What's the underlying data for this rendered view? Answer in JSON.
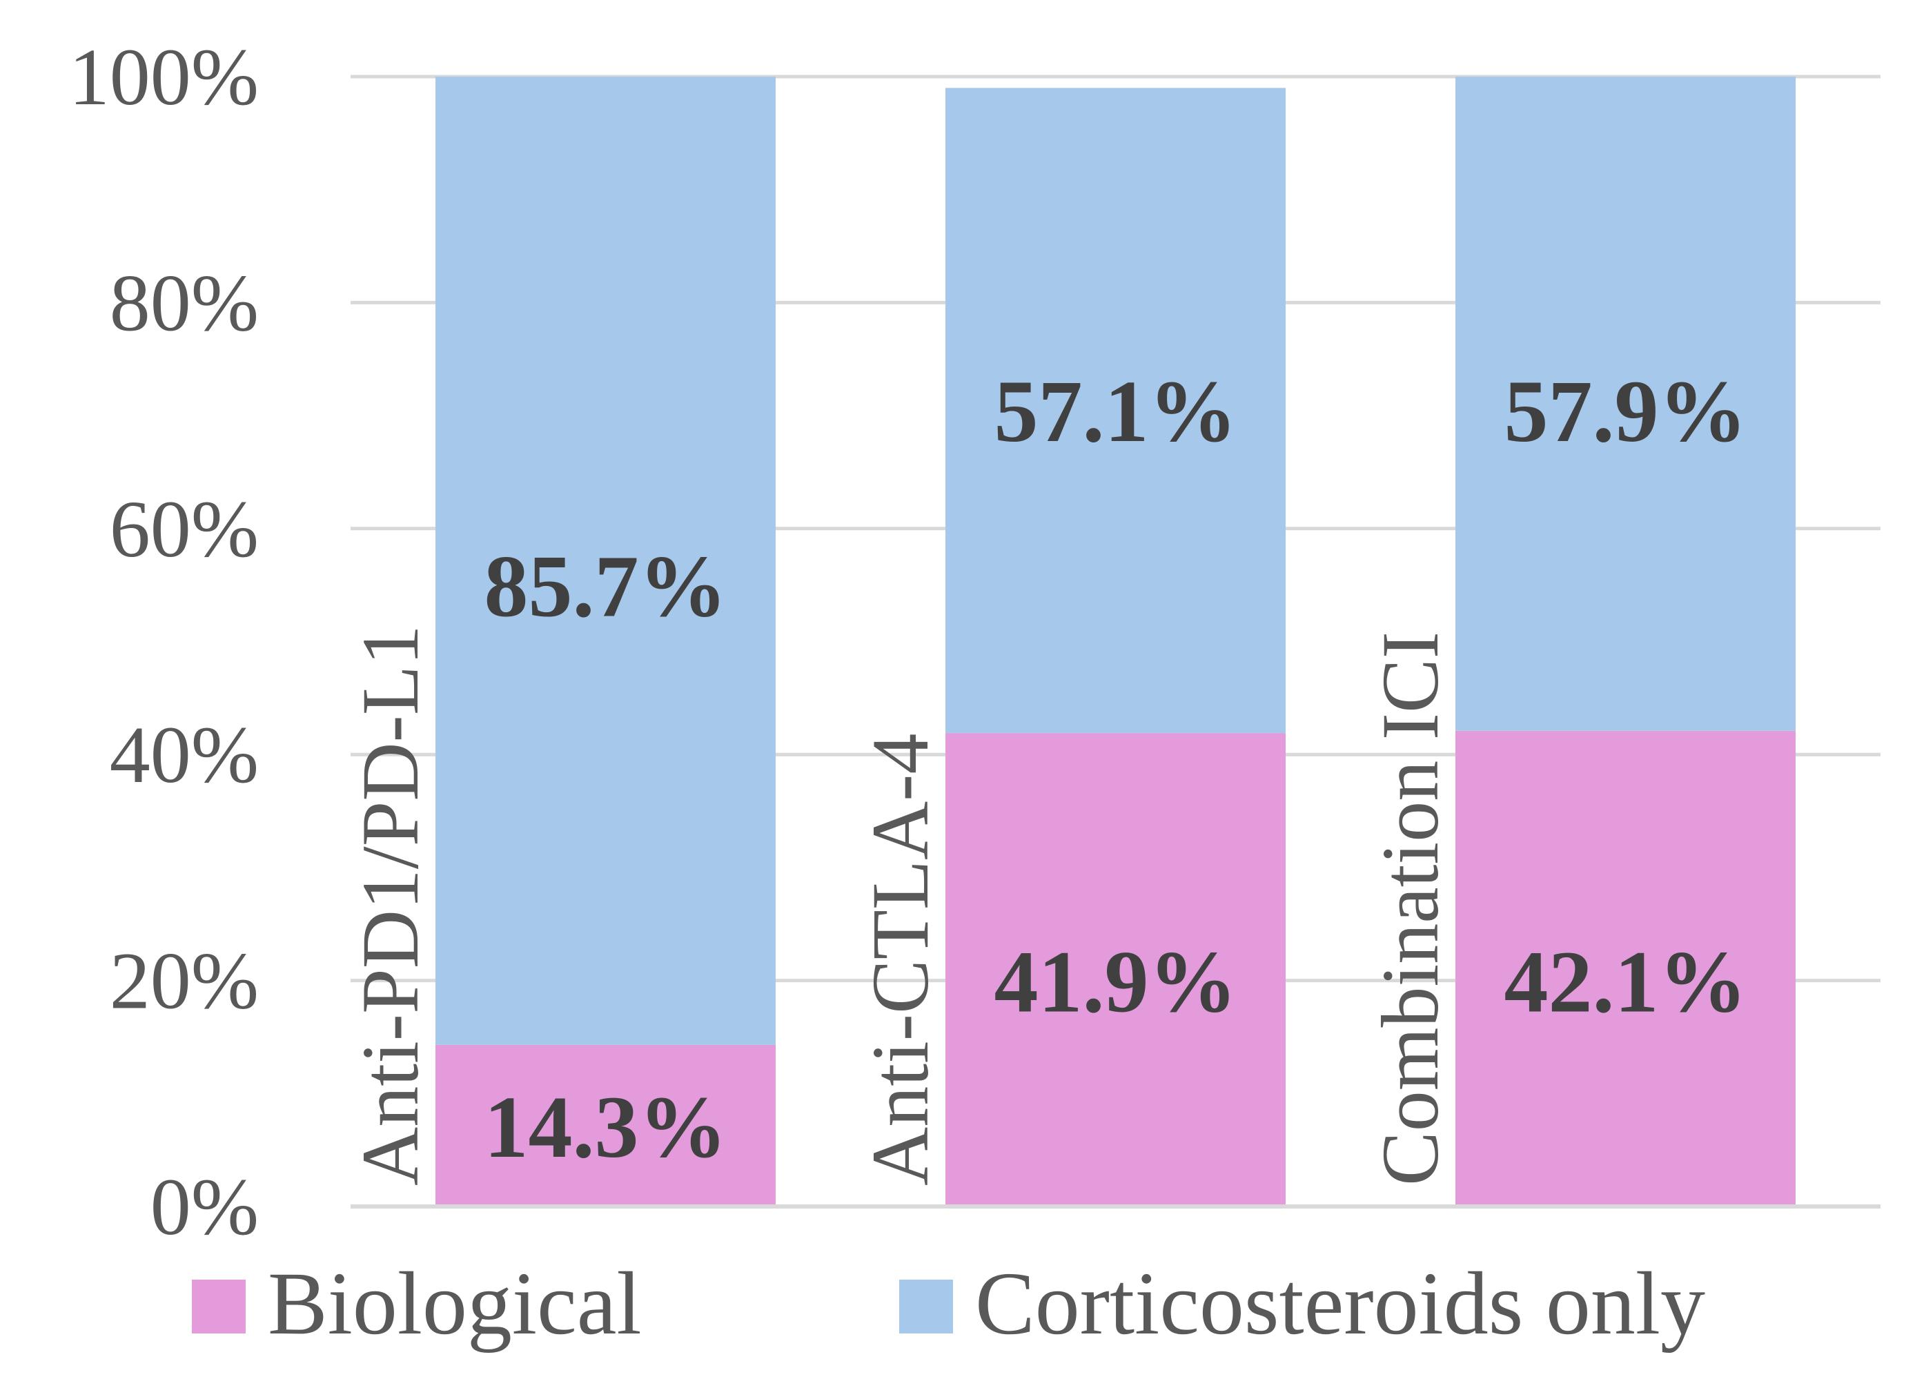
{
  "chart_data": {
    "type": "bar",
    "stacked": true,
    "title": "",
    "xlabel": "",
    "ylabel": "",
    "ylim": [
      0,
      100
    ],
    "y_ticks": [
      "0%",
      "20%",
      "40%",
      "60%",
      "80%",
      "100%"
    ],
    "y_tick_values": [
      0,
      20,
      40,
      60,
      80,
      100
    ],
    "categories": [
      "Anti-PD1/PD-L1",
      "Anti-CTLA-4",
      "Combination ICI"
    ],
    "series": [
      {
        "name": "Biological",
        "color": "#e39bdc",
        "values": [
          14.3,
          41.9,
          42.1
        ],
        "labels": [
          "14.3%",
          "41.9%",
          "42.1%"
        ]
      },
      {
        "name": "Corticosteroids only",
        "color": "#a6c8ea",
        "values": [
          85.7,
          57.1,
          57.9
        ],
        "labels": [
          "85.7%",
          "57.1%",
          "57.9%"
        ]
      }
    ],
    "grid": true,
    "grid_color": "#d9d9d9",
    "legend": "bottom"
  }
}
